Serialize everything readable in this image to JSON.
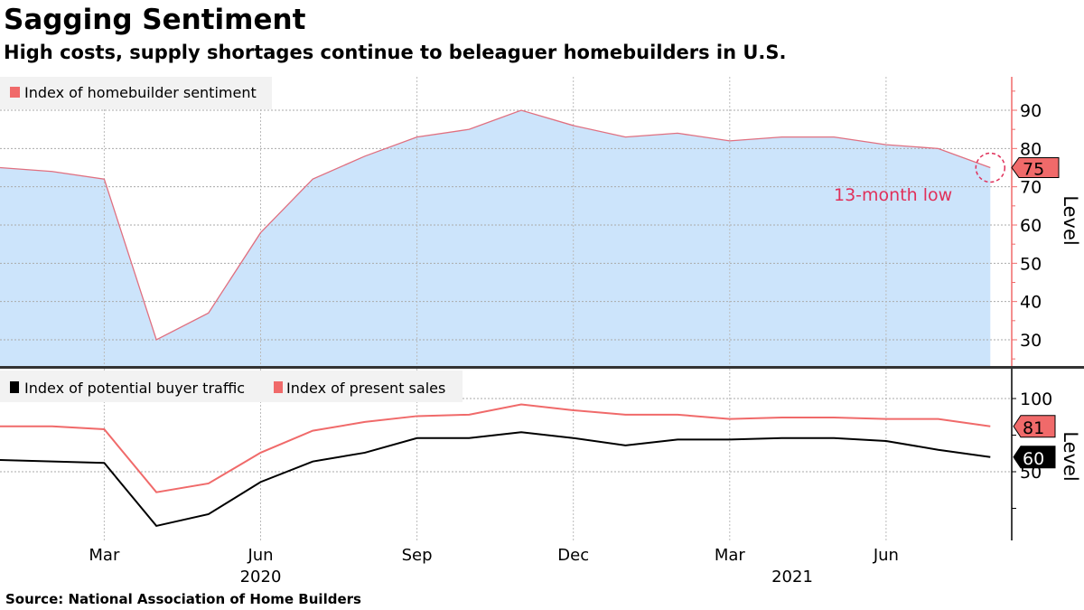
{
  "title": "Sagging Sentiment",
  "subtitle": "High costs, supply shortages continue to beleaguer homebuilders in U.S.",
  "source": "Source: National Association of Home Builders",
  "colors": {
    "sentiment_line": "#e07080",
    "sentiment_fill": "#cce4fb",
    "sales": "#f06a6a",
    "traffic": "#000000",
    "annotation": "#e0305a",
    "axis_top": "#f06a6a",
    "axis_bottom": "#000000"
  },
  "chart_data": [
    {
      "type": "area",
      "x": [
        "2020-01",
        "2020-02",
        "2020-03",
        "2020-04",
        "2020-05",
        "2020-06",
        "2020-07",
        "2020-08",
        "2020-09",
        "2020-10",
        "2020-11",
        "2020-12",
        "2021-01",
        "2021-02",
        "2021-03",
        "2021-04",
        "2021-05",
        "2021-06",
        "2021-07",
        "2021-08"
      ],
      "series": [
        {
          "name": "Index of homebuilder sentiment",
          "values": [
            75,
            74,
            72,
            30,
            37,
            58,
            72,
            78,
            83,
            85,
            90,
            86,
            83,
            84,
            82,
            83,
            83,
            81,
            80,
            75
          ]
        }
      ],
      "ylabel": "Level",
      "ylim": [
        23,
        100
      ],
      "yticks": [
        30,
        40,
        50,
        60,
        70,
        80,
        90
      ],
      "last_value_label": "75",
      "annotation": "13-month low",
      "grid": true,
      "legend": "top-left"
    },
    {
      "type": "line",
      "x": [
        "2020-01",
        "2020-02",
        "2020-03",
        "2020-04",
        "2020-05",
        "2020-06",
        "2020-07",
        "2020-08",
        "2020-09",
        "2020-10",
        "2020-11",
        "2020-12",
        "2021-01",
        "2021-02",
        "2021-03",
        "2021-04",
        "2021-05",
        "2021-06",
        "2021-07",
        "2021-08"
      ],
      "series": [
        {
          "name": "Index of potential buyer traffic",
          "values": [
            58,
            57,
            56,
            13,
            21,
            43,
            57,
            63,
            73,
            73,
            77,
            73,
            68,
            72,
            72,
            73,
            73,
            71,
            65,
            60
          ],
          "last_value_label": "60"
        },
        {
          "name": "Index of present sales",
          "values": [
            81,
            81,
            79,
            36,
            42,
            63,
            78,
            84,
            88,
            89,
            96,
            92,
            89,
            89,
            86,
            87,
            87,
            86,
            86,
            81
          ],
          "last_value_label": "81"
        }
      ],
      "ylabel": "Level",
      "ylim": [
        3,
        122
      ],
      "yticks": [
        50,
        100
      ],
      "minor_yticks": [
        25,
        75
      ],
      "xtick_labels": [
        "Mar",
        "Jun",
        "Sep",
        "Dec",
        "Mar",
        "Jun"
      ],
      "year_labels": [
        "2020",
        "2021"
      ],
      "grid": true,
      "legend": "top-left"
    }
  ]
}
